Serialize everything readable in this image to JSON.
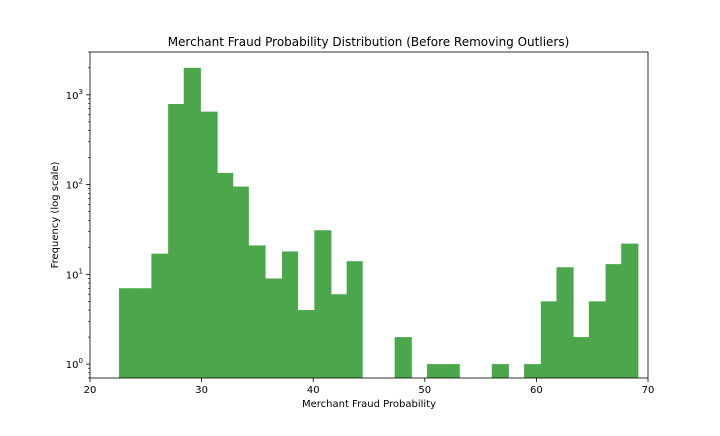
{
  "chart_data": {
    "type": "bar",
    "title": "Merchant Fraud Probability Distribution (Before Removing Outliers)",
    "xlabel": "Merchant Fraud Probability",
    "ylabel": "Frequency (log scale)",
    "yscale": "log",
    "xlim": [
      20,
      70
    ],
    "ylim": [
      0.7,
      3000
    ],
    "bar_color": "#4ca64c",
    "grid": false,
    "x_ticks": [
      {
        "value": 20,
        "label": "20"
      },
      {
        "value": 30,
        "label": "30"
      },
      {
        "value": 40,
        "label": "40"
      },
      {
        "value": 50,
        "label": "50"
      },
      {
        "value": 60,
        "label": "60"
      },
      {
        "value": 70,
        "label": "70"
      }
    ],
    "y_ticks": [
      {
        "value": 1,
        "base": "10",
        "exp": "0"
      },
      {
        "value": 10,
        "base": "10",
        "exp": "1"
      },
      {
        "value": 100,
        "base": "10",
        "exp": "2"
      },
      {
        "value": 1000,
        "base": "10",
        "exp": "3"
      }
    ],
    "bins": [
      {
        "x0": 22.6,
        "x1": 24.0,
        "count": 7
      },
      {
        "x0": 24.0,
        "x1": 25.5,
        "count": 7
      },
      {
        "x0": 25.5,
        "x1": 27.0,
        "count": 17
      },
      {
        "x0": 27.0,
        "x1": 28.4,
        "count": 790
      },
      {
        "x0": 28.4,
        "x1": 29.9,
        "count": 2000
      },
      {
        "x0": 29.9,
        "x1": 31.4,
        "count": 650
      },
      {
        "x0": 31.4,
        "x1": 32.8,
        "count": 135
      },
      {
        "x0": 32.8,
        "x1": 34.2,
        "count": 95
      },
      {
        "x0": 34.2,
        "x1": 35.7,
        "count": 21
      },
      {
        "x0": 35.7,
        "x1": 37.2,
        "count": 9
      },
      {
        "x0": 37.2,
        "x1": 38.6,
        "count": 18
      },
      {
        "x0": 38.6,
        "x1": 40.1,
        "count": 4
      },
      {
        "x0": 40.1,
        "x1": 41.6,
        "count": 31
      },
      {
        "x0": 41.6,
        "x1": 43.0,
        "count": 6
      },
      {
        "x0": 43.0,
        "x1": 44.4,
        "count": 14
      },
      {
        "x0": 47.3,
        "x1": 48.8,
        "count": 2
      },
      {
        "x0": 50.2,
        "x1": 51.7,
        "count": 1
      },
      {
        "x0": 51.7,
        "x1": 53.1,
        "count": 1
      },
      {
        "x0": 56.0,
        "x1": 57.5,
        "count": 1
      },
      {
        "x0": 58.9,
        "x1": 60.4,
        "count": 1
      },
      {
        "x0": 60.4,
        "x1": 61.8,
        "count": 5
      },
      {
        "x0": 61.8,
        "x1": 63.3,
        "count": 12
      },
      {
        "x0": 63.3,
        "x1": 64.7,
        "count": 2
      },
      {
        "x0": 64.7,
        "x1": 66.2,
        "count": 5
      },
      {
        "x0": 66.2,
        "x1": 67.6,
        "count": 13
      },
      {
        "x0": 67.6,
        "x1": 69.1,
        "count": 22
      }
    ]
  }
}
